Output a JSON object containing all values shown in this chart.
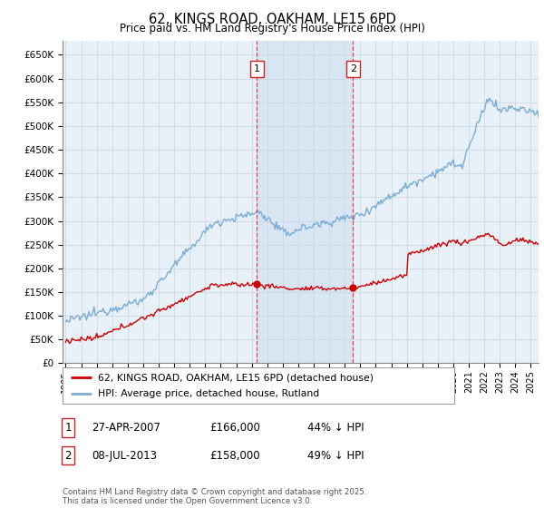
{
  "title": "62, KINGS ROAD, OAKHAM, LE15 6PD",
  "subtitle": "Price paid vs. HM Land Registry's House Price Index (HPI)",
  "legend_entry1": "62, KINGS ROAD, OAKHAM, LE15 6PD (detached house)",
  "legend_entry2": "HPI: Average price, detached house, Rutland",
  "annotation1_label": "1",
  "annotation1_date": "27-APR-2007",
  "annotation1_price": "£166,000",
  "annotation1_hpi": "44% ↓ HPI",
  "annotation1_year": 2007.33,
  "annotation1_value": 166000,
  "annotation2_label": "2",
  "annotation2_date": "08-JUL-2013",
  "annotation2_price": "£158,000",
  "annotation2_hpi": "49% ↓ HPI",
  "annotation2_year": 2013.54,
  "annotation2_value": 158000,
  "footer": "Contains HM Land Registry data © Crown copyright and database right 2025.\nThis data is licensed under the Open Government Licence v3.0.",
  "red_line_color": "#cc0000",
  "blue_line_color": "#7aadd4",
  "background_color": "#f0f4f8",
  "chart_bg": "#e8f0f8",
  "grid_color": "#c8d4e0",
  "shade_color": "#ccddf0",
  "ylim": [
    0,
    680000
  ],
  "xlim_start": 1994.8,
  "xlim_end": 2025.5
}
